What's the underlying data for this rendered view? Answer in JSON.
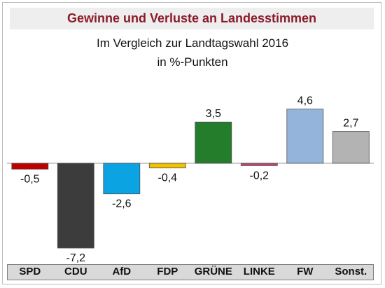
{
  "chart_data": {
    "type": "bar",
    "title": "Gewinne und Verluste an Landesstimmen",
    "subtitle_line1": "Im Vergleich zur Landtagswahl 2016",
    "subtitle_line2": "in %-Punkten",
    "categories": [
      "SPD",
      "CDU",
      "AfD",
      "FDP",
      "GRÜNE",
      "LINKE",
      "FW",
      "Sonst."
    ],
    "values": [
      -0.5,
      -7.2,
      -2.6,
      -0.4,
      3.5,
      -0.2,
      4.6,
      2.7
    ],
    "value_labels": [
      "-0,5",
      "-7,2",
      "-2,6",
      "-0,4",
      "3,5",
      "-0,2",
      "4,6",
      "2,7"
    ],
    "colors": [
      "#c00000",
      "#3c3c3c",
      "#0ba3e2",
      "#f2c200",
      "#237d2a",
      "#c2476b",
      "#94b4db",
      "#b3b3b3"
    ],
    "xlabel": "",
    "ylabel": "",
    "ylim": [
      -7.2,
      4.6
    ],
    "grid": false,
    "legend": "none"
  }
}
